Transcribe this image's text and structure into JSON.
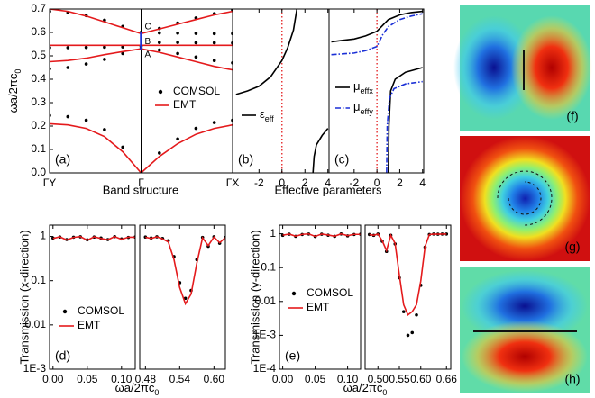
{
  "chart_data": [
    {
      "type": "band",
      "label": "(a)",
      "xlabel": "Band structure",
      "ylabel": [
        "ωa/2πc",
        "0"
      ],
      "x": [
        -1,
        -0.8,
        -0.6,
        -0.4,
        -0.2,
        0,
        0.2,
        0.4,
        0.6,
        0.8,
        1
      ],
      "xlim": [
        -1,
        1
      ],
      "xticks": [
        {
          "value": -1,
          "label": "ΓY"
        },
        {
          "value": 0,
          "label": "Γ"
        },
        {
          "value": 1,
          "label": "ΓX"
        }
      ],
      "ylim": [
        0,
        0.7
      ],
      "yticks": [
        {
          "value": 0,
          "label": "0.0"
        },
        0.1,
        0.2,
        0.3,
        0.4,
        0.5,
        0.6,
        0.7
      ],
      "series": [
        {
          "name": "COMSOL",
          "color": "#000000",
          "style": "dots",
          "bands": [
            [
              0.245,
              0.24,
              0.225,
              0.185,
              0.11,
              0,
              0.085,
              0.145,
              0.19,
              0.215,
              0.225
            ],
            [
              0.445,
              0.45,
              0.465,
              0.485,
              0.51,
              0.53,
              0.525,
              0.51,
              0.495,
              0.48,
              0.47
            ],
            [
              0.535,
              0.535,
              0.536,
              0.537,
              0.538,
              0.54,
              0.557,
              0.557,
              0.556,
              0.556,
              0.555
            ],
            [
              0.69,
              0.685,
              0.672,
              0.652,
              0.626,
              0.6,
              0.598,
              0.597,
              0.596,
              0.595,
              0.595
            ],
            [
              null,
              null,
              null,
              null,
              null,
              0.6,
              0.617,
              0.64,
              0.662,
              0.68,
              0.695
            ]
          ]
        },
        {
          "name": "EMT",
          "color": "#e41a1c",
          "style": "solid",
          "bands": [
            [
              0.21,
              0.205,
              0.19,
              0.155,
              0.09,
              0,
              0.07,
              0.125,
              0.165,
              0.19,
              0.205
            ],
            [
              0.475,
              0.48,
              0.49,
              0.505,
              0.518,
              0.53,
              0.515,
              0.495,
              0.475,
              0.455,
              0.44
            ],
            [
              0.545,
              0.545,
              0.545,
              0.545,
              0.545,
              0.545,
              0.545,
              0.545,
              0.545,
              0.545,
              0.545
            ],
            [
              0.7,
              0.69,
              0.67,
              0.645,
              0.62,
              0.595,
              0.615,
              0.635,
              0.655,
              0.675,
              0.69
            ]
          ]
        }
      ],
      "points_color": "#1a2fd6",
      "points": [
        {
          "label": "A",
          "value": 0.527
        },
        {
          "label": "B",
          "value": 0.56
        },
        {
          "label": "C",
          "value": 0.6
        }
      ]
    },
    {
      "type": "line",
      "label": "(b)",
      "xlabel": "Effective parameters",
      "xlim": [
        -4.3,
        4.1
      ],
      "xticks": [
        -2,
        0,
        2,
        4
      ],
      "ylim": [
        0,
        0.7
      ],
      "vline": {
        "value": 0,
        "color": "#e41a1c"
      },
      "series": [
        {
          "name": [
            "ε",
            "eff"
          ],
          "color": "#000000",
          "style": "solid",
          "x": [
            -4,
            -3,
            -2,
            -1,
            0,
            0.5,
            1,
            1.3,
            2,
            2.7,
            2.8,
            3,
            3.5,
            4
          ],
          "values": [
            0.335,
            0.35,
            0.37,
            0.41,
            0.48,
            0.535,
            0.61,
            0.7,
            null,
            0,
            0.07,
            0.12,
            0.16,
            0.19
          ]
        }
      ]
    },
    {
      "type": "line",
      "label": "(c)",
      "xlim": [
        -4.2,
        4.1
      ],
      "xticks": [
        -2,
        0,
        2,
        4
      ],
      "ylim": [
        0,
        0.7
      ],
      "vline": {
        "value": 0,
        "color": "#e41a1c"
      },
      "series": [
        {
          "name": [
            "μ",
            "effx"
          ],
          "color": "#000000",
          "style": "solid",
          "x": [
            -4,
            -2,
            -1,
            0,
            0.5,
            1,
            2,
            3,
            4,
            0,
            1,
            1.05,
            1.2,
            1.6,
            2.5,
            4
          ],
          "values": [
            0.56,
            0.572,
            0.585,
            0.605,
            0.63,
            0.655,
            0.675,
            0.685,
            0.69,
            null,
            0,
            0.2,
            0.35,
            0.4,
            0.43,
            0.45
          ]
        },
        {
          "name": [
            "μ",
            "effy"
          ],
          "color": "#1a2fd6",
          "style": "dashdot",
          "x": [
            -4,
            -2,
            -1,
            0,
            0.5,
            1,
            2,
            3,
            4,
            0,
            0.85,
            0.9,
            1.1,
            1.5,
            2.5,
            4
          ],
          "values": [
            0.505,
            0.512,
            0.522,
            0.54,
            0.59,
            0.625,
            0.655,
            0.67,
            0.68,
            null,
            0,
            0.2,
            0.32,
            0.36,
            0.38,
            0.39
          ]
        }
      ]
    },
    {
      "type": "line",
      "label": "(d)",
      "log": true,
      "xlabel": [
        "ωa/2πc",
        "0"
      ],
      "ylabel": "Transmission (x-direction)",
      "xlim": [
        -0.005,
        0.12
      ],
      "xticks": [
        {
          "value": 0,
          "label": "0.00"
        },
        0.05,
        {
          "value": 0.1,
          "label": "0.10"
        }
      ],
      "ylim": [
        0.001,
        1.8
      ],
      "yticks": [
        1,
        0.1,
        0.01,
        {
          "value": 0.001,
          "label": "1E-3"
        }
      ],
      "x": [
        0,
        0.01,
        0.02,
        0.03,
        0.04,
        0.05,
        0.06,
        0.07,
        0.08,
        0.09,
        0.1,
        0.11,
        0.12
      ],
      "series": [
        {
          "name": "COMSOL",
          "color": "#000000",
          "style": "dots",
          "values": [
            0.92,
            0.97,
            0.85,
            0.96,
            0.98,
            0.84,
            0.97,
            0.92,
            0.85,
            0.99,
            0.88,
            0.95,
            0.97
          ]
        },
        {
          "name": "EMT",
          "color": "#e41a1c",
          "style": "solid",
          "values": [
            0.9,
            0.98,
            0.83,
            0.95,
            0.99,
            0.82,
            0.98,
            0.9,
            0.84,
            0.99,
            0.86,
            0.96,
            0.96
          ]
        }
      ]
    },
    {
      "type": "line",
      "log": true,
      "xlim": [
        0.47,
        0.62
      ],
      "xticks": [
        0.48,
        0.54,
        {
          "value": 0.6,
          "label": "0.60"
        }
      ],
      "ylim": [
        0.001,
        1.8
      ],
      "x": [
        0.48,
        0.49,
        0.5,
        0.51,
        0.52,
        0.53,
        0.54,
        0.55,
        0.56,
        0.57,
        0.58,
        0.59,
        0.6,
        0.61,
        0.62
      ],
      "series": [
        {
          "color": "#000000",
          "style": "dots",
          "values": [
            0.97,
            0.92,
            0.98,
            0.9,
            0.8,
            0.35,
            0.09,
            0.04,
            0.06,
            0.3,
            0.95,
            0.6,
            0.98,
            0.7,
            0.95
          ]
        },
        {
          "color": "#e41a1c",
          "style": "solid",
          "values": [
            0.96,
            0.9,
            0.98,
            0.88,
            0.75,
            0.3,
            0.07,
            0.03,
            0.05,
            0.25,
            0.93,
            0.62,
            0.97,
            0.72,
            0.94
          ]
        }
      ]
    },
    {
      "type": "line",
      "label": "(e)",
      "log": true,
      "xlabel": [
        "ωa/2πc",
        "0"
      ],
      "ylabel": "Transmission (y-direction)",
      "xlim": [
        -0.005,
        0.12
      ],
      "xticks": [
        {
          "value": 0,
          "label": "0.00"
        },
        0.05,
        {
          "value": 0.1,
          "label": "0.10"
        }
      ],
      "ylim": [
        0.0001,
        1.8
      ],
      "yticks": [
        1,
        0.1,
        0.01,
        {
          "value": 0.001,
          "label": "1E-3"
        },
        {
          "value": 0.0001,
          "label": "1E-4"
        }
      ],
      "x": [
        0,
        0.01,
        0.02,
        0.03,
        0.04,
        0.05,
        0.06,
        0.07,
        0.08,
        0.09,
        0.1,
        0.11,
        0.12
      ],
      "series": [
        {
          "name": "COMSOL",
          "color": "#000000",
          "style": "dots",
          "values": [
            0.9,
            0.97,
            0.84,
            0.95,
            0.98,
            0.83,
            0.97,
            0.91,
            0.84,
            0.99,
            0.87,
            0.95,
            0.97
          ]
        },
        {
          "name": "EMT",
          "color": "#e41a1c",
          "style": "solid",
          "values": [
            0.91,
            0.98,
            0.85,
            0.96,
            0.99,
            0.84,
            0.98,
            0.92,
            0.85,
            0.99,
            0.88,
            0.96,
            0.96
          ]
        }
      ]
    },
    {
      "type": "line",
      "log": true,
      "xlim": [
        0.47,
        0.67
      ],
      "xticks": [
        {
          "value": 0.5,
          "label": "0.50"
        },
        0.55,
        {
          "value": 0.6,
          "label": "0.60"
        },
        0.66
      ],
      "ylim": [
        0.0001,
        1.8
      ],
      "x": [
        0.48,
        0.49,
        0.5,
        0.51,
        0.52,
        0.53,
        0.54,
        0.55,
        0.56,
        0.57,
        0.58,
        0.59,
        0.6,
        0.61,
        0.62,
        0.63,
        0.64,
        0.65,
        0.66
      ],
      "series": [
        {
          "color": "#000000",
          "style": "dots",
          "values": [
            0.95,
            0.9,
            0.98,
            0.6,
            0.3,
            0.9,
            0.5,
            0.05,
            0.005,
            0.001,
            0.0012,
            0.004,
            0.03,
            0.4,
            0.95,
            0.98,
            0.97,
            0.98,
            0.98
          ]
        },
        {
          "color": "#e41a1c",
          "style": "solid",
          "values": [
            0.95,
            0.9,
            0.98,
            0.62,
            0.32,
            0.9,
            0.52,
            0.06,
            0.008,
            0.004,
            0.005,
            0.008,
            0.04,
            0.42,
            0.95,
            0.98,
            0.97,
            0.98,
            0.98
          ]
        }
      ]
    }
  ],
  "fields": [
    {
      "label": "(f)"
    },
    {
      "label": "(g)"
    },
    {
      "label": "(h)"
    }
  ]
}
